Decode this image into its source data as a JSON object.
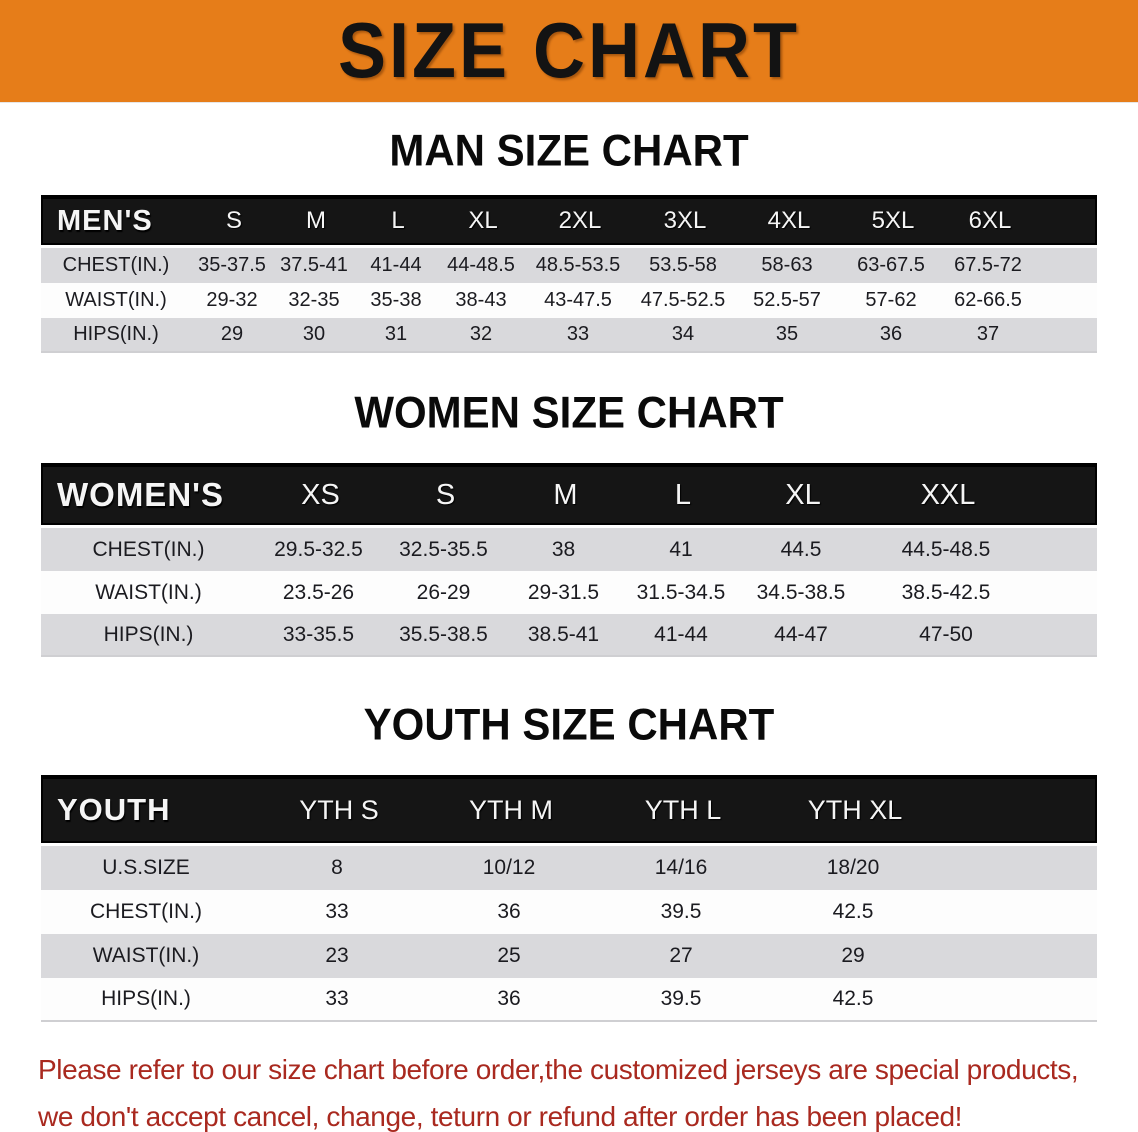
{
  "banner": {
    "title": "SIZE CHART"
  },
  "colors": {
    "banner_orange": "#E67D19",
    "table_header_black": "#151515",
    "row_shade_gray": "#D9D9DC",
    "disclaimer_red": "#A9291F"
  },
  "men": {
    "heading": "MAN SIZE CHART",
    "corner_label": "MEN'S",
    "sizes": [
      "S",
      "M",
      "L",
      "XL",
      "2XL",
      "3XL",
      "4XL",
      "5XL",
      "6XL"
    ],
    "rows": [
      {
        "label": "CHEST(IN.)",
        "values": [
          "35-37.5",
          "37.5-41",
          "41-44",
          "44-48.5",
          "48.5-53.5",
          "53.5-58",
          "58-63",
          "63-67.5",
          "67.5-72"
        ]
      },
      {
        "label": "WAIST(IN.)",
        "values": [
          "29-32",
          "32-35",
          "35-38",
          "38-43",
          "43-47.5",
          "47.5-52.5",
          "52.5-57",
          "57-62",
          "62-66.5"
        ]
      },
      {
        "label": "HIPS(IN.)",
        "values": [
          "29",
          "30",
          "31",
          "32",
          "33",
          "34",
          "35",
          "36",
          "37"
        ]
      }
    ]
  },
  "women": {
    "heading": "WOMEN SIZE CHART",
    "corner_label": "WOMEN'S",
    "sizes": [
      "XS",
      "S",
      "M",
      "L",
      "XL",
      "XXL"
    ],
    "rows": [
      {
        "label": "CHEST(IN.)",
        "values": [
          "29.5-32.5",
          "32.5-35.5",
          "38",
          "41",
          "44.5",
          "44.5-48.5"
        ]
      },
      {
        "label": "WAIST(IN.)",
        "values": [
          "23.5-26",
          "26-29",
          "29-31.5",
          "31.5-34.5",
          "34.5-38.5",
          "38.5-42.5"
        ]
      },
      {
        "label": "HIPS(IN.)",
        "values": [
          "33-35.5",
          "35.5-38.5",
          "38.5-41",
          "41-44",
          "44-47",
          "47-50"
        ]
      }
    ]
  },
  "youth": {
    "heading": "YOUTH SIZE CHART",
    "corner_label": "YOUTH",
    "sizes": [
      "YTH S",
      "YTH M",
      "YTH L",
      "YTH XL"
    ],
    "rows": [
      {
        "label": "U.S.SIZE",
        "values": [
          "8",
          "10/12",
          "14/16",
          "18/20"
        ]
      },
      {
        "label": "CHEST(IN.)",
        "values": [
          "33",
          "36",
          "39.5",
          "42.5"
        ]
      },
      {
        "label": "WAIST(IN.)",
        "values": [
          "23",
          "25",
          "27",
          "29"
        ]
      },
      {
        "label": "HIPS(IN.)",
        "values": [
          "33",
          "36",
          "39.5",
          "42.5"
        ]
      }
    ]
  },
  "disclaimer": {
    "line1": "Please refer to our size chart before order,the customized jerseys are special products,",
    "line2": "we don't accept cancel, change, teturn or refund after order has been placed!"
  }
}
